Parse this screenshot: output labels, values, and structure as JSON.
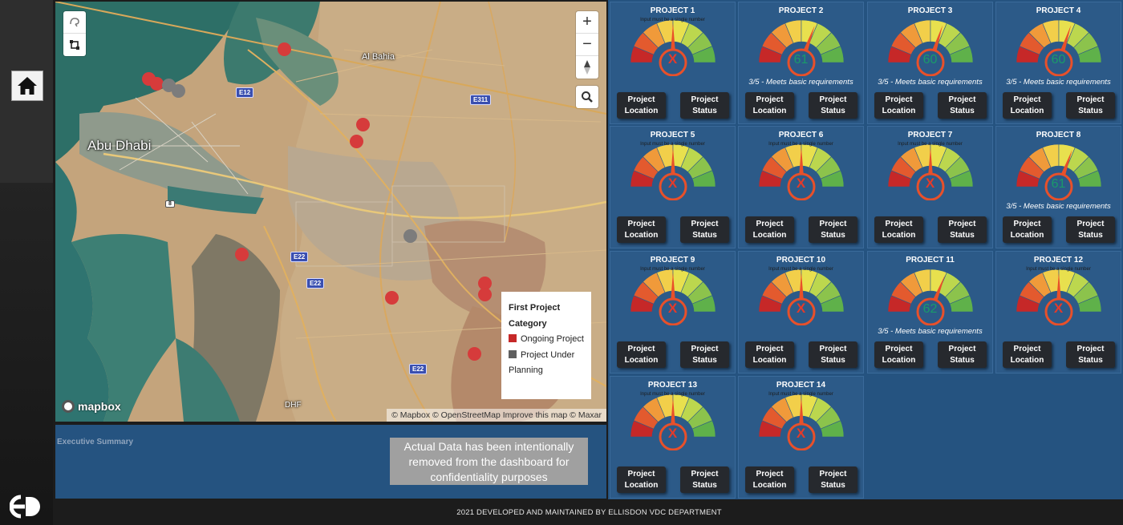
{
  "map": {
    "city_label": "Abu Dhabi",
    "town_label": "Al Bahia",
    "airport_label": "DHF",
    "shields_blue": [
      "E12",
      "E311",
      "E22",
      "E22",
      "E22"
    ],
    "shield_white": "8",
    "mapbox_label": "mapbox",
    "attribution": "© Mapbox © OpenStreetMap Improve this map © Maxar",
    "controls": {
      "zoom_in": "+",
      "zoom_out": "−",
      "compass": "▲",
      "search": "search-icon"
    }
  },
  "legend": {
    "title": "First Project Category",
    "items": [
      {
        "label": "Ongoing Project",
        "color": "#c62828"
      },
      {
        "label": "Project Under Planning",
        "color": "#5f5f5f"
      }
    ]
  },
  "executive_summary": {
    "title": "Executive Summary",
    "notice": "Actual Data has been intentionally removed from the dashboard for confidentiality purposes"
  },
  "footer": "2021 DEVELOPED AND MAINTAINED BY ELLISDON VDC DEPARTMENT",
  "buttons": {
    "location_line1": "Project",
    "location_line2": "Location",
    "status_line1": "Project",
    "status_line2": "Status"
  },
  "projects": [
    {
      "title": "PROJECT 1",
      "error": "Input must be a single number",
      "value": "",
      "mark": "X",
      "caption": ""
    },
    {
      "title": "PROJECT 2",
      "error": "",
      "value": "61",
      "mark": "",
      "caption": "3/5 - Meets basic requirements"
    },
    {
      "title": "PROJECT 3",
      "error": "",
      "value": "60",
      "mark": "",
      "caption": "3/5 - Meets basic requirements"
    },
    {
      "title": "PROJECT 4",
      "error": "",
      "value": "60",
      "mark": "",
      "caption": "3/5 - Meets basic requirements"
    },
    {
      "title": "PROJECT 5",
      "error": "Input must be a single number",
      "value": "",
      "mark": "X",
      "caption": ""
    },
    {
      "title": "PROJECT 6",
      "error": "Input must be a single number",
      "value": "",
      "mark": "X",
      "caption": ""
    },
    {
      "title": "PROJECT 7",
      "error": "Input must be a single number",
      "value": "",
      "mark": "X",
      "caption": ""
    },
    {
      "title": "PROJECT 8",
      "error": "",
      "value": "61",
      "mark": "",
      "caption": "3/5 - Meets basic requirements"
    },
    {
      "title": "PROJECT 9",
      "error": "Input must be a single number",
      "value": "",
      "mark": "X",
      "caption": ""
    },
    {
      "title": "PROJECT 10",
      "error": "Input must be a single number",
      "value": "",
      "mark": "X",
      "caption": ""
    },
    {
      "title": "PROJECT 11",
      "error": "",
      "value": "62",
      "mark": "",
      "caption": "3/5 - Meets basic requirements"
    },
    {
      "title": "PROJECT 12",
      "error": "Input must be a single number",
      "value": "",
      "mark": "X",
      "caption": ""
    },
    {
      "title": "PROJECT 13",
      "error": "Input must be a single number",
      "value": "",
      "mark": "X",
      "caption": ""
    },
    {
      "title": "PROJECT 14",
      "error": "Input must be a single number",
      "value": "",
      "mark": "X",
      "caption": ""
    }
  ]
}
